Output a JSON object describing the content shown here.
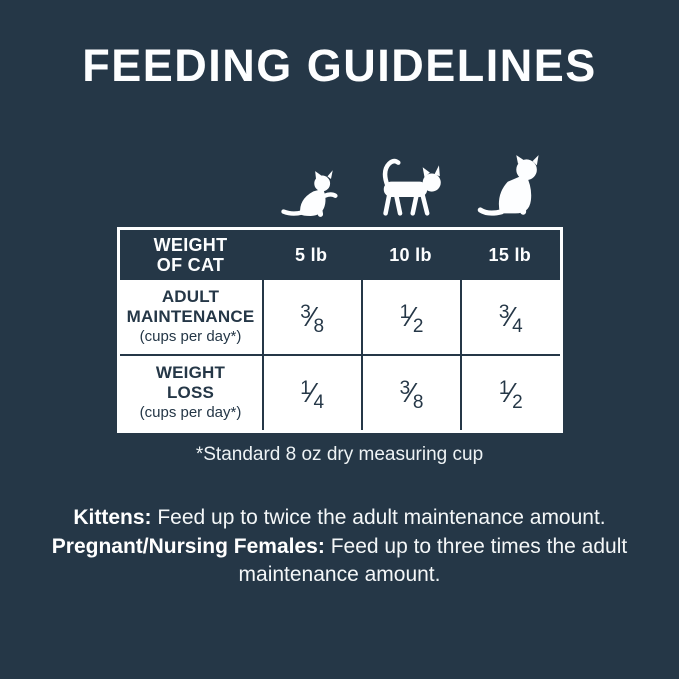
{
  "colors": {
    "background": "#253747",
    "table_bg": "#ffffff",
    "table_text": "#253747",
    "text_light": "#fdfeff"
  },
  "title": "FEEDING GUIDELINES",
  "cats": [
    {
      "icon": "kitten-icon",
      "represents": "5 lb"
    },
    {
      "icon": "adult-cat-icon",
      "represents": "10 lb"
    },
    {
      "icon": "large-cat-icon",
      "represents": "15 lb"
    }
  ],
  "table": {
    "header": {
      "col0_line1": "WEIGHT",
      "col0_line2": "OF CAT",
      "cols": [
        "5 lb",
        "10 lb",
        "15 lb"
      ]
    },
    "rows": [
      {
        "label_line1": "ADULT",
        "label_line2": "MAINTENANCE",
        "label_note": "(cups per day*)",
        "values": [
          "3/8",
          "1/2",
          "3/4"
        ]
      },
      {
        "label_line1": "WEIGHT",
        "label_line2": "LOSS",
        "label_note": "(cups per day*)",
        "values": [
          "1/4",
          "3/8",
          "1/2"
        ]
      }
    ]
  },
  "footnote": "*Standard 8 oz dry measuring cup",
  "notes": [
    {
      "lead": "Kittens:",
      "text": "Feed up to twice the adult maintenance amount."
    },
    {
      "lead": "Pregnant/Nursing Females:",
      "text": "Feed up to three times the adult maintenance amount."
    }
  ],
  "chart_data": {
    "type": "table",
    "title": "FEEDING GUIDELINES",
    "columns": [
      "WEIGHT OF CAT",
      "5 lb",
      "10 lb",
      "15 lb"
    ],
    "rows": [
      [
        "ADULT MAINTENANCE (cups per day*)",
        "3/8",
        "1/2",
        "3/4"
      ],
      [
        "WEIGHT LOSS (cups per day*)",
        "1/4",
        "3/8",
        "1/2"
      ]
    ],
    "units": "cups per day",
    "footnote": "*Standard 8 oz dry measuring cup",
    "annotations": [
      "Kittens: Feed up to twice the adult maintenance amount.",
      "Pregnant/Nursing Females: Feed up to three times the adult maintenance amount."
    ]
  }
}
